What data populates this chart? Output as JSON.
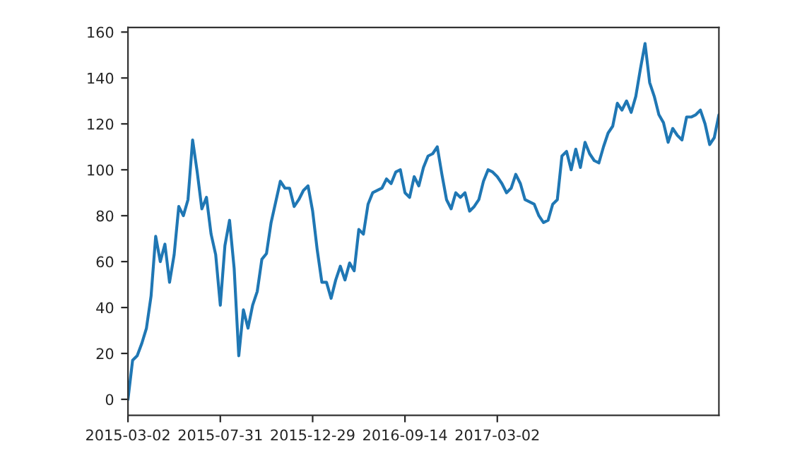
{
  "chart_data": {
    "type": "line",
    "categories": [
      "2015-03-02",
      null,
      null,
      null,
      null,
      null,
      null,
      null,
      null,
      null,
      null,
      null,
      null,
      null,
      null,
      null,
      null,
      null,
      null,
      null,
      "2015-07-31",
      null,
      null,
      null,
      null,
      null,
      null,
      null,
      null,
      null,
      null,
      null,
      null,
      null,
      null,
      null,
      null,
      null,
      null,
      null,
      "2015-12-29",
      null,
      null,
      null,
      null,
      null,
      null,
      null,
      null,
      null,
      null,
      null,
      null,
      null,
      null,
      null,
      null,
      null,
      null,
      null,
      "2016-09-14",
      null,
      null,
      null,
      null,
      null,
      null,
      null,
      null,
      null,
      null,
      null,
      null,
      null,
      null,
      null,
      null,
      null,
      null,
      null,
      "2017-03-02",
      null,
      null,
      null,
      null,
      null,
      null,
      null,
      null,
      null,
      null,
      null,
      null,
      null,
      null,
      null,
      null,
      null,
      null,
      null,
      null,
      null,
      null,
      null,
      null,
      null,
      null,
      null,
      null,
      null,
      null,
      null,
      null,
      null,
      null,
      null,
      null,
      null,
      null,
      null,
      null,
      null,
      null,
      null,
      null,
      null,
      null,
      null,
      null
    ],
    "series": [
      {
        "color": "#1f77b4",
        "values": [
          0,
          17,
          19,
          24.4,
          31,
          45,
          71,
          60,
          67.6,
          51,
          63,
          84,
          80,
          87,
          113,
          99,
          83,
          88,
          72,
          63,
          41,
          67,
          78,
          57,
          19,
          39,
          31,
          41,
          47,
          61,
          63.5,
          77,
          86,
          95,
          92,
          92,
          84,
          87,
          91,
          93,
          82,
          65,
          51,
          51,
          44,
          52,
          58,
          52,
          59.4,
          56,
          74,
          72,
          85,
          90,
          91,
          92,
          96,
          94,
          99,
          100,
          90,
          88,
          97,
          93,
          101,
          106,
          107,
          110,
          98,
          87,
          83,
          90,
          88,
          90,
          82,
          84,
          87,
          95,
          100,
          99,
          97,
          94,
          90,
          92,
          98,
          94,
          87,
          86,
          85,
          80,
          77,
          78,
          85,
          87,
          106,
          108,
          100,
          109,
          101,
          112,
          107,
          104,
          103,
          110,
          116,
          119,
          129,
          126,
          130,
          125,
          132,
          144,
          155,
          138,
          132,
          124,
          120.5,
          112,
          118,
          115,
          113,
          123,
          123,
          124,
          126,
          120,
          111,
          114,
          124
        ]
      }
    ],
    "ylim": [
      -7,
      162
    ],
    "yticks": [
      0,
      20,
      40,
      60,
      80,
      100,
      120,
      140,
      160
    ]
  }
}
